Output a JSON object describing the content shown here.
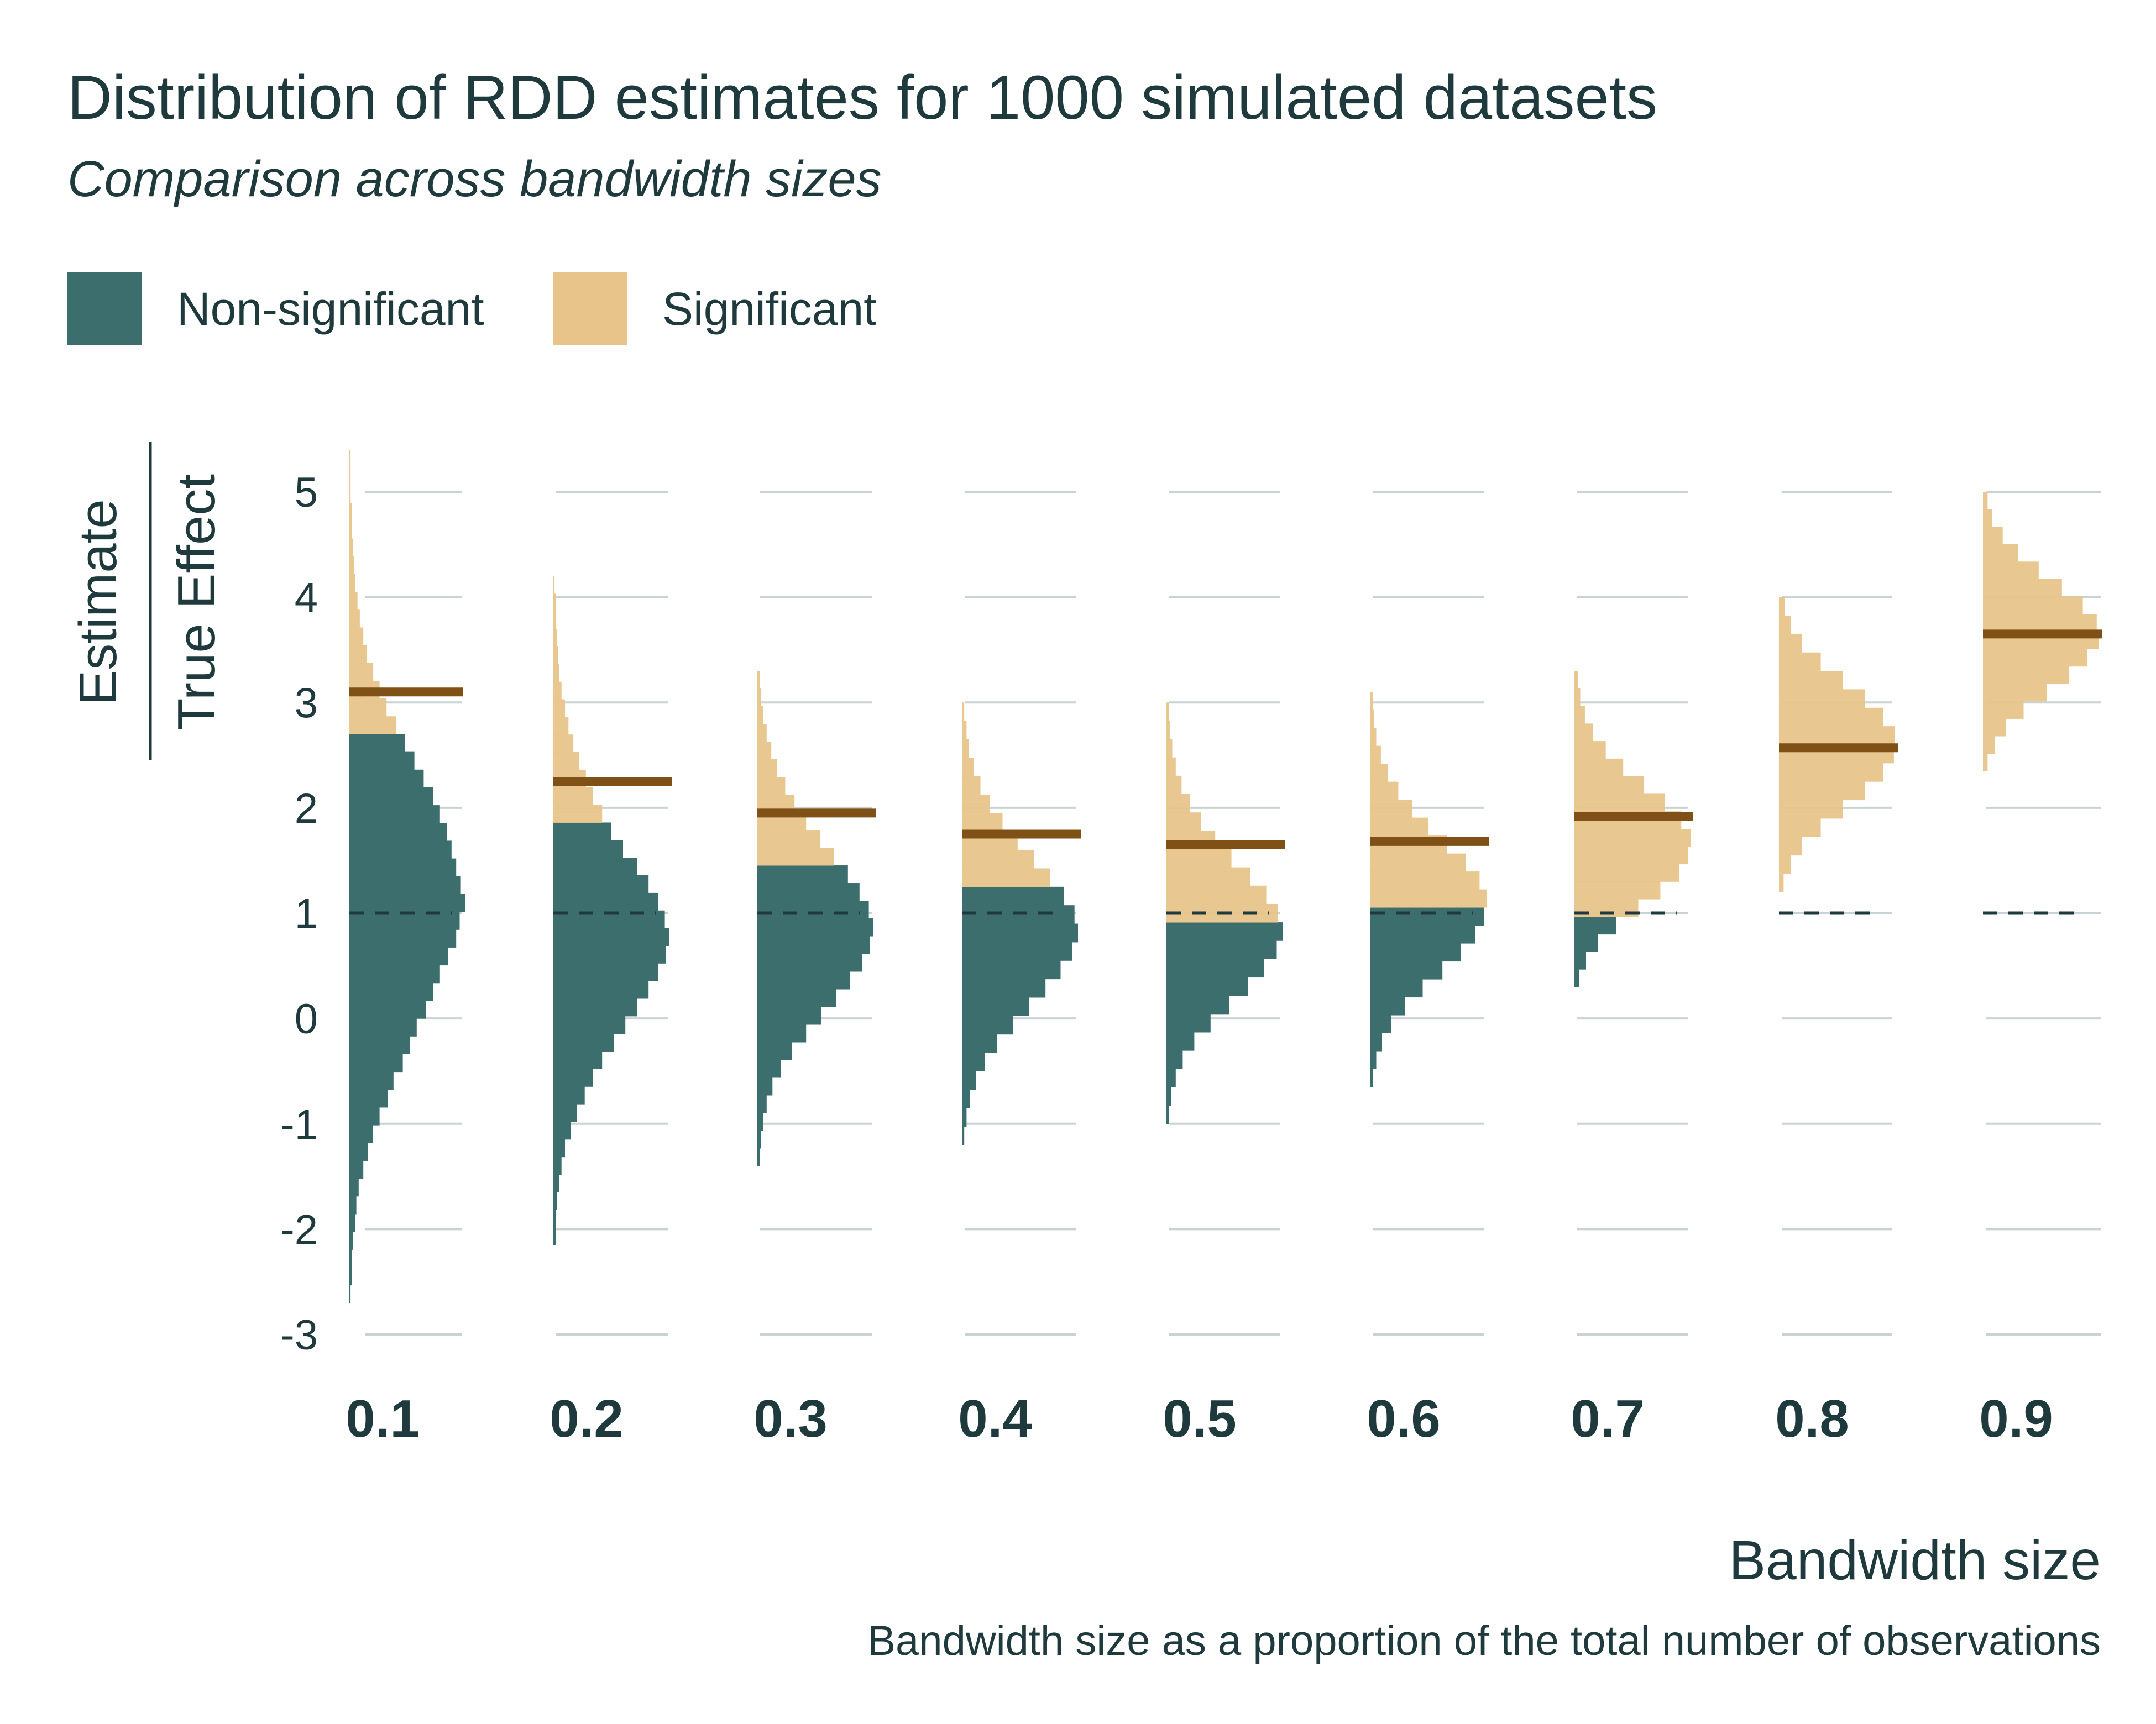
{
  "chart_data": {
    "type": "histogram",
    "title": "Distribution of RDD estimates for 1000 simulated datasets",
    "subtitle": "Comparison across bandwidth sizes",
    "xlabel": "Bandwidth size",
    "caption": "Bandwidth size as a proportion of the total number of observations",
    "ylabel_numerator": "Estimate",
    "ylabel_denominator": "True Effect",
    "ylim": [
      -3,
      5.5
    ],
    "y_ticks": [
      "5",
      "4",
      "3",
      "2",
      "1",
      "0",
      "-1",
      "-2",
      "-3"
    ],
    "reference_line": 1,
    "legend": [
      {
        "label": "Non-significant",
        "color": "#3d6e6e"
      },
      {
        "label": "Significant",
        "color": "#e8c48b"
      }
    ],
    "mean_line_color": "#7f5117",
    "panels": [
      {
        "label": "0.1",
        "mean": 3.1,
        "sig_threshold": 2.7,
        "range": [
          -2.7,
          5.4
        ],
        "counts": [
          0.01,
          0.02,
          0.02,
          0.03,
          0.05,
          0.06,
          0.08,
          0.12,
          0.16,
          0.2,
          0.26,
          0.33,
          0.38,
          0.46,
          0.52,
          0.58,
          0.66,
          0.72,
          0.78,
          0.85,
          0.92,
          0.95,
          1.0,
          0.96,
          0.92,
          0.88,
          0.84,
          0.78,
          0.72,
          0.64,
          0.56,
          0.48,
          0.4,
          0.32,
          0.26,
          0.2,
          0.15,
          0.12,
          0.09,
          0.07,
          0.05,
          0.04,
          0.03,
          0.02,
          0.02,
          0.01,
          0.01,
          0.01
        ]
      },
      {
        "label": "0.2",
        "mean": 2.25,
        "sig_threshold": 1.8,
        "range": [
          -2.15,
          4.2
        ],
        "counts": [
          0.02,
          0.02,
          0.03,
          0.05,
          0.07,
          0.1,
          0.15,
          0.2,
          0.27,
          0.34,
          0.42,
          0.52,
          0.62,
          0.72,
          0.82,
          0.9,
          0.97,
          1.0,
          0.96,
          0.9,
          0.82,
          0.72,
          0.6,
          0.5,
          0.42,
          0.34,
          0.28,
          0.22,
          0.17,
          0.13,
          0.1,
          0.07,
          0.05,
          0.04,
          0.03,
          0.02,
          0.02,
          0.01
        ]
      },
      {
        "label": "0.3",
        "mean": 1.95,
        "sig_threshold": 1.4,
        "range": [
          -1.4,
          3.3
        ],
        "counts": [
          0.02,
          0.03,
          0.05,
          0.08,
          0.13,
          0.2,
          0.3,
          0.42,
          0.55,
          0.68,
          0.8,
          0.9,
          0.97,
          1.0,
          0.96,
          0.88,
          0.78,
          0.66,
          0.54,
          0.42,
          0.32,
          0.24,
          0.17,
          0.12,
          0.08,
          0.05,
          0.03,
          0.02
        ]
      },
      {
        "label": "0.4",
        "mean": 1.75,
        "sig_threshold": 1.2,
        "range": [
          -1.2,
          3.0
        ],
        "counts": [
          0.02,
          0.04,
          0.07,
          0.12,
          0.2,
          0.3,
          0.44,
          0.58,
          0.72,
          0.85,
          0.95,
          1.0,
          0.97,
          0.88,
          0.76,
          0.62,
          0.48,
          0.35,
          0.24,
          0.16,
          0.1,
          0.06,
          0.04,
          0.02
        ]
      },
      {
        "label": "0.5",
        "mean": 1.65,
        "sig_threshold": 1.0,
        "range": [
          -1.0,
          3.0
        ],
        "counts": [
          0.02,
          0.04,
          0.08,
          0.14,
          0.24,
          0.38,
          0.54,
          0.7,
          0.84,
          0.95,
          1.0,
          0.96,
          0.86,
          0.72,
          0.56,
          0.42,
          0.3,
          0.2,
          0.13,
          0.08,
          0.05,
          0.03,
          0.02
        ]
      },
      {
        "label": "0.6",
        "mean": 1.68,
        "sig_threshold": 1.0,
        "range": [
          -0.65,
          3.1
        ],
        "counts": [
          0.02,
          0.05,
          0.1,
          0.18,
          0.3,
          0.45,
          0.62,
          0.78,
          0.9,
          0.98,
          1.0,
          0.94,
          0.82,
          0.66,
          0.5,
          0.36,
          0.24,
          0.15,
          0.09,
          0.05,
          0.03,
          0.02
        ]
      },
      {
        "label": "0.7",
        "mean": 1.92,
        "sig_threshold": 1.02,
        "range": [
          0.3,
          3.3
        ],
        "counts": [
          0.04,
          0.1,
          0.2,
          0.36,
          0.55,
          0.74,
          0.9,
          0.98,
          1.0,
          0.92,
          0.78,
          0.6,
          0.42,
          0.27,
          0.16,
          0.09,
          0.05,
          0.03
        ]
      },
      {
        "label": "0.8",
        "mean": 2.57,
        "sig_threshold": 0.9,
        "range": [
          1.2,
          4.0
        ],
        "counts": [
          0.04,
          0.1,
          0.2,
          0.36,
          0.55,
          0.74,
          0.9,
          0.99,
          1.0,
          0.9,
          0.74,
          0.55,
          0.36,
          0.2,
          0.1,
          0.05
        ]
      },
      {
        "label": "0.9",
        "mean": 3.65,
        "sig_threshold": 2.3,
        "range": [
          2.35,
          5.0
        ],
        "counts": [
          0.04,
          0.1,
          0.2,
          0.35,
          0.55,
          0.74,
          0.9,
          1.0,
          0.98,
          0.86,
          0.68,
          0.48,
          0.3,
          0.17,
          0.08,
          0.04
        ]
      }
    ]
  }
}
